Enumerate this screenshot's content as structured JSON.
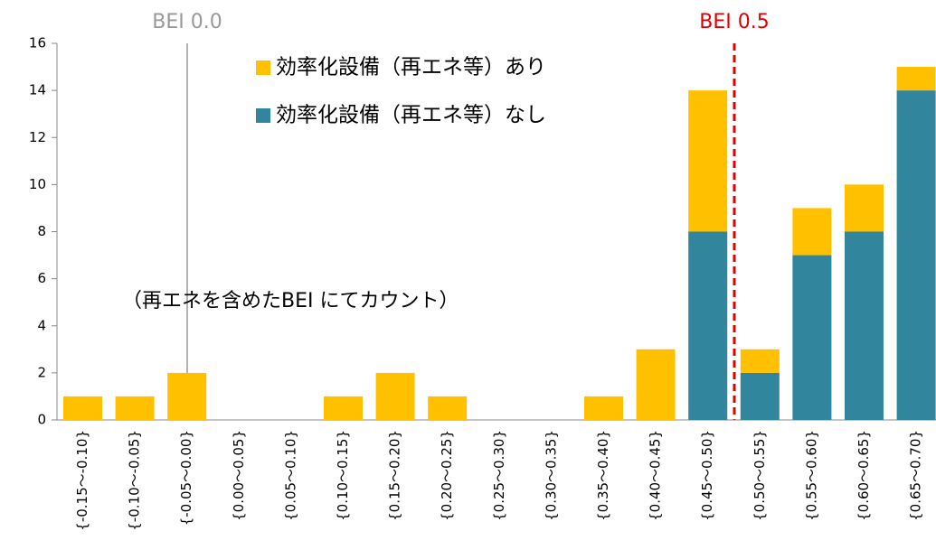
{
  "chart_data": {
    "type": "stacked_bar",
    "categories": [
      "{-0.15～-0.10}",
      "{-0.10～-0.05}",
      "{-0.05～0.00}",
      "{0.00～0.05}",
      "{0.05～0.10}",
      "{0.10～0.15}",
      "{0.15～0.20}",
      "{0.20～0.25}",
      "{0.25～0.30}",
      "{0.30～0.35}",
      "{0.35～0.40}",
      "{0.40～0.45}",
      "{0.45～0.50}",
      "{0.50～0.55}",
      "{0.55～0.60}",
      "{0.60～0.65}",
      "{0.65～0.70}"
    ],
    "series": [
      {
        "name": "効率化設備（再エネ等）なし",
        "color": "#31859c",
        "values": [
          0,
          0,
          0,
          0,
          0,
          0,
          0,
          0,
          0,
          0,
          0,
          0,
          8,
          2,
          7,
          8,
          14
        ]
      },
      {
        "name": "効率化設備（再エネ等）あり",
        "color": "#ffc000",
        "values": [
          1,
          1,
          2,
          0,
          0,
          1,
          2,
          1,
          0,
          0,
          1,
          3,
          6,
          1,
          2,
          2,
          1
        ]
      }
    ],
    "ylim": [
      0,
      16
    ],
    "yticks": [
      0,
      2,
      4,
      6,
      8,
      10,
      12,
      14,
      16
    ],
    "grid": false,
    "annotations": [
      "BEI 0.0",
      "BEI 0.5",
      "（再エネを含めたBEI にてカウント）"
    ]
  }
}
